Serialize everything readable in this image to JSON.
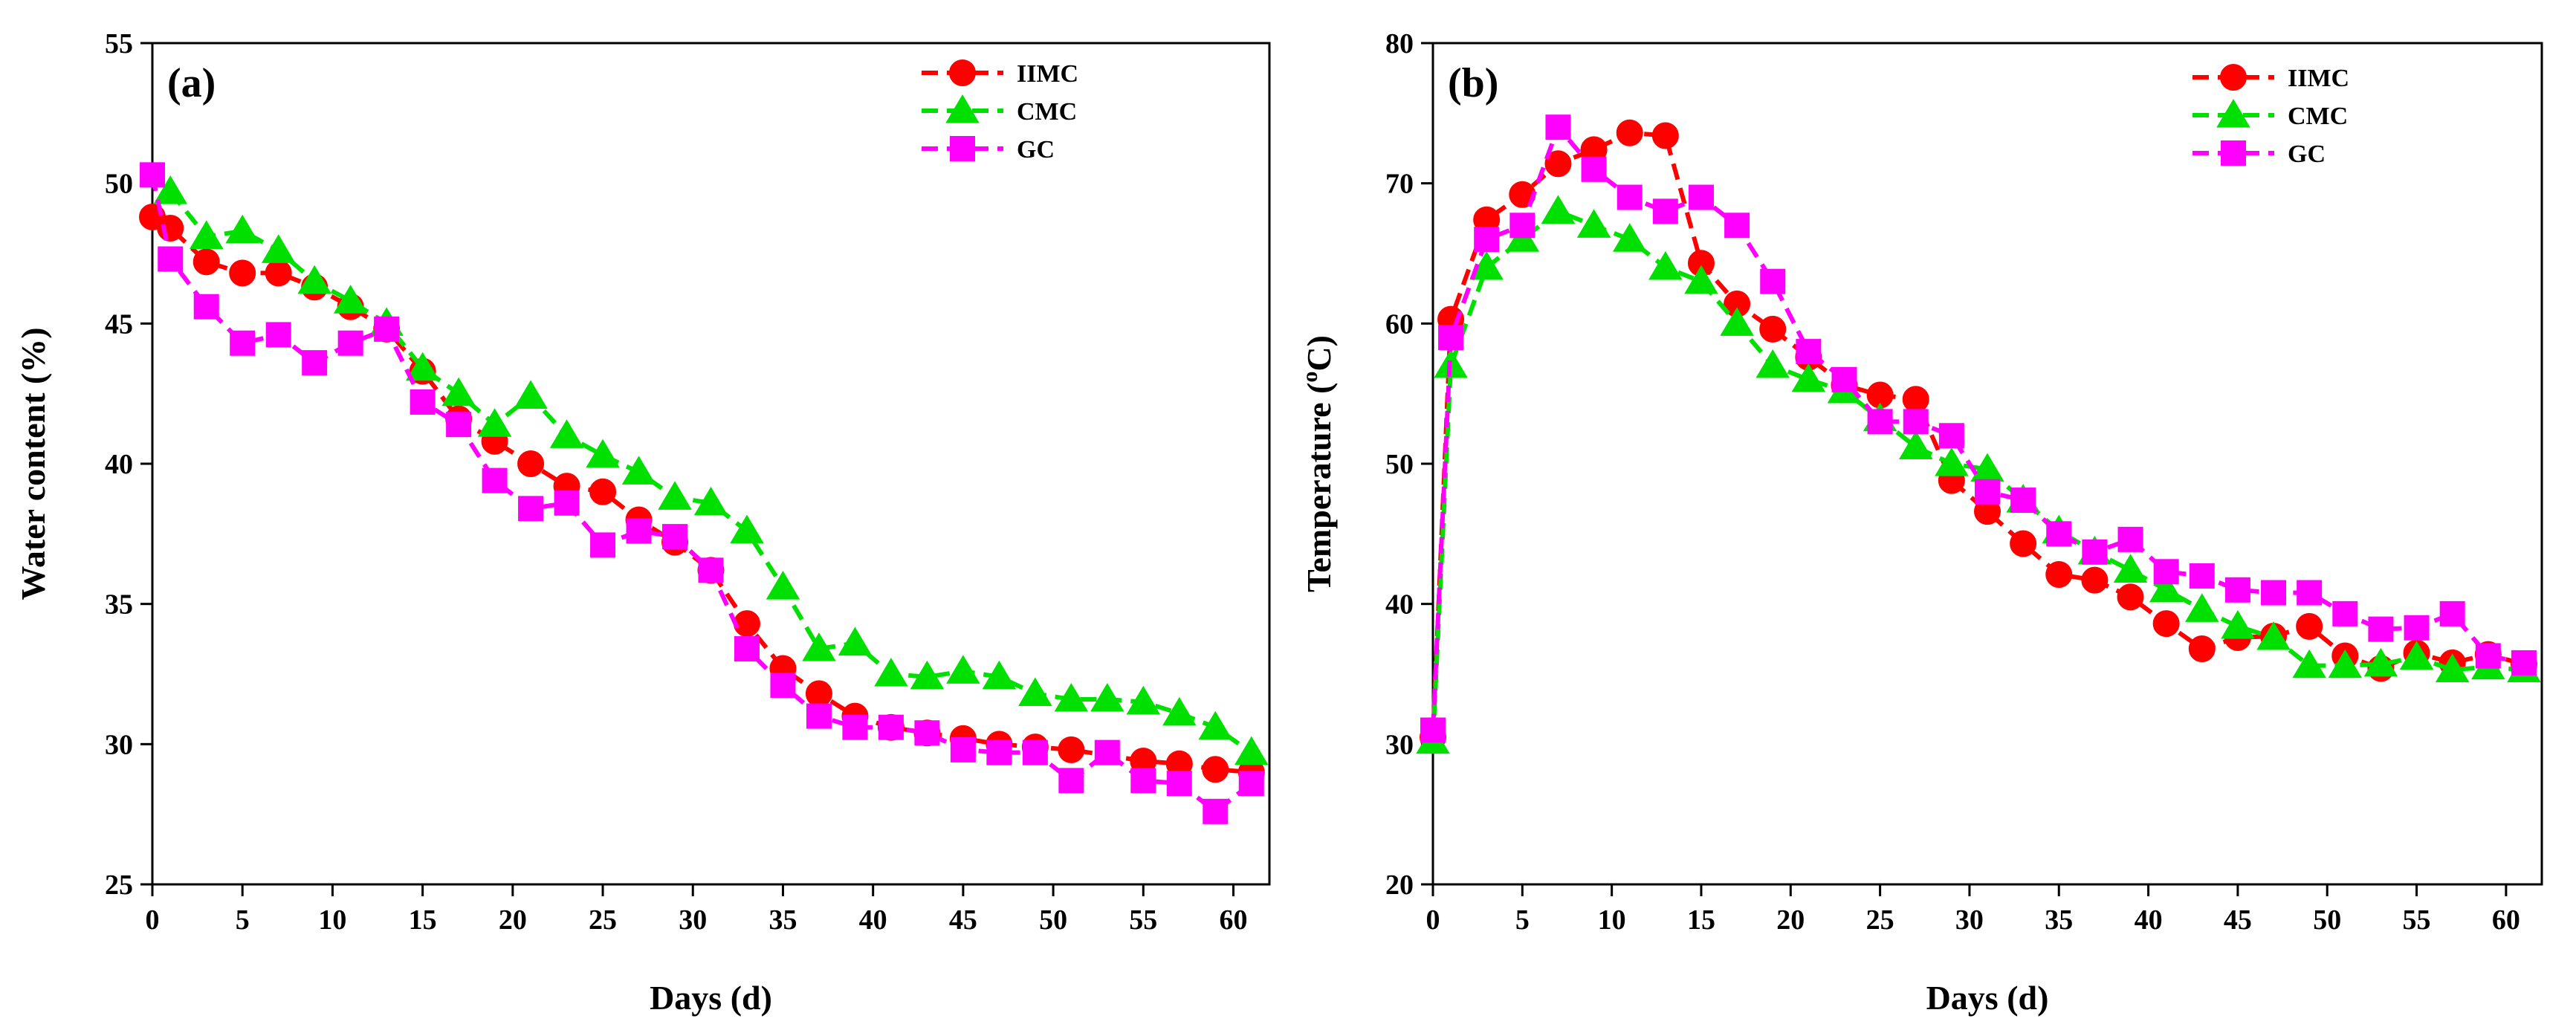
{
  "chart_data": [
    {
      "type": "line",
      "panel_label": "(a)",
      "title": "",
      "xlabel": "Days (d)",
      "ylabel": "Water content (%)",
      "xlim": [
        0,
        62
      ],
      "ylim": [
        25,
        55
      ],
      "xticks": [
        0,
        5,
        10,
        15,
        20,
        25,
        30,
        35,
        40,
        45,
        50,
        55,
        60
      ],
      "yticks": [
        25,
        30,
        35,
        40,
        45,
        50,
        55
      ],
      "grid": false,
      "legend_position": "top-right",
      "series": [
        {
          "name": "IIMC",
          "color": "#ff0000",
          "marker": "circle",
          "x": [
            0,
            1,
            3,
            5,
            7,
            9,
            11,
            13,
            15,
            17,
            19,
            21,
            23,
            25,
            27,
            29,
            31,
            33,
            35,
            37,
            39,
            41,
            43,
            45,
            47,
            49,
            51,
            55,
            57,
            59,
            61
          ],
          "y": [
            48.8,
            48.4,
            47.2,
            46.8,
            46.8,
            46.3,
            45.6,
            44.8,
            43.3,
            41.6,
            40.8,
            40.0,
            39.2,
            39.0,
            38.0,
            37.2,
            36.2,
            34.3,
            32.7,
            31.8,
            31.0,
            30.6,
            30.4,
            30.2,
            30.0,
            29.9,
            29.8,
            29.4,
            29.3,
            29.1,
            29.0
          ]
        },
        {
          "name": "CMC",
          "color": "#00e000",
          "marker": "triangle",
          "x": [
            1,
            3,
            5,
            7,
            9,
            11,
            13,
            15,
            17,
            19,
            21,
            23,
            25,
            27,
            29,
            31,
            33,
            35,
            37,
            39,
            41,
            43,
            45,
            47,
            49,
            51,
            53,
            55,
            57,
            59,
            61
          ],
          "y": [
            49.7,
            48.1,
            48.3,
            47.6,
            46.5,
            45.8,
            45.0,
            43.4,
            42.5,
            41.4,
            42.4,
            41.0,
            40.3,
            39.7,
            38.8,
            38.6,
            37.6,
            35.6,
            33.4,
            33.6,
            32.5,
            32.4,
            32.6,
            32.4,
            31.8,
            31.6,
            31.6,
            31.5,
            31.1,
            30.6,
            29.7
          ]
        },
        {
          "name": "GC",
          "color": "#ff00ff",
          "marker": "square",
          "x": [
            0,
            1,
            3,
            5,
            7,
            9,
            11,
            13,
            15,
            17,
            19,
            21,
            23,
            25,
            27,
            29,
            31,
            33,
            35,
            37,
            39,
            41,
            43,
            45,
            47,
            49,
            51,
            53,
            55,
            57,
            59,
            61
          ],
          "y": [
            50.3,
            47.3,
            45.6,
            44.3,
            44.6,
            43.6,
            44.3,
            44.8,
            42.2,
            41.4,
            39.4,
            38.4,
            38.6,
            37.1,
            37.6,
            37.4,
            36.2,
            33.4,
            32.1,
            31.0,
            30.6,
            30.6,
            30.4,
            29.8,
            29.7,
            29.7,
            28.7,
            29.7,
            28.7,
            28.6,
            27.6,
            28.6
          ]
        }
      ]
    },
    {
      "type": "line",
      "panel_label": "(b)",
      "title": "",
      "xlabel": "Days (d)",
      "ylabel": "Temperature (°C)",
      "ylabel_parts": [
        "Temperature (",
        "o",
        "C)"
      ],
      "xlim": [
        0,
        62
      ],
      "ylim": [
        20,
        80
      ],
      "xticks": [
        0,
        5,
        10,
        15,
        20,
        25,
        30,
        35,
        40,
        45,
        50,
        55,
        60
      ],
      "yticks": [
        20,
        30,
        40,
        50,
        60,
        70,
        80
      ],
      "grid": false,
      "legend_position": "top-right",
      "series": [
        {
          "name": "IIMC",
          "color": "#ff0000",
          "marker": "circle",
          "x": [
            0,
            1,
            3,
            5,
            7,
            9,
            11,
            13,
            15,
            17,
            19,
            21,
            23,
            25,
            27,
            29,
            31,
            33,
            35,
            37,
            39,
            41,
            43,
            45,
            47,
            49,
            51,
            53,
            55,
            57,
            59,
            61
          ],
          "y": [
            30.5,
            60.3,
            67.4,
            69.2,
            71.4,
            72.4,
            73.6,
            73.4,
            64.3,
            61.4,
            59.6,
            57.6,
            55.6,
            54.9,
            54.6,
            48.8,
            46.6,
            44.3,
            42.1,
            41.7,
            40.5,
            38.6,
            36.8,
            37.6,
            37.7,
            38.4,
            36.3,
            35.4,
            36.5,
            35.8,
            36.4,
            35.7
          ]
        },
        {
          "name": "CMC",
          "color": "#00e000",
          "marker": "triangle",
          "x": [
            0,
            1,
            3,
            5,
            7,
            9,
            11,
            13,
            15,
            17,
            19,
            21,
            23,
            25,
            27,
            29,
            31,
            33,
            35,
            37,
            39,
            41,
            43,
            45,
            47,
            49,
            51,
            53,
            55,
            57,
            59,
            61
          ],
          "y": [
            30.2,
            57.0,
            64.0,
            66.0,
            68.0,
            67.0,
            66.0,
            64.0,
            63.0,
            60.0,
            57.0,
            56.0,
            55.2,
            53.2,
            51.2,
            50.0,
            49.6,
            47.4,
            45.2,
            43.7,
            42.4,
            41.0,
            39.6,
            38.4,
            37.6,
            35.6,
            35.6,
            35.7,
            36.2,
            35.3,
            35.5,
            35.3
          ]
        },
        {
          "name": "GC",
          "color": "#ff00ff",
          "marker": "square",
          "x": [
            0,
            1,
            3,
            5,
            7,
            9,
            11,
            13,
            15,
            17,
            19,
            21,
            23,
            25,
            27,
            29,
            31,
            33,
            35,
            37,
            39,
            41,
            43,
            45,
            47,
            49,
            51,
            53,
            55,
            57,
            59,
            61
          ],
          "y": [
            31.0,
            59.0,
            66.0,
            67.0,
            74.0,
            71.0,
            69.0,
            68.0,
            69.0,
            67.0,
            63.0,
            58.0,
            56.0,
            53.0,
            53.0,
            52.0,
            48.0,
            47.4,
            45.0,
            43.7,
            44.6,
            42.3,
            42.0,
            41.0,
            40.8,
            40.8,
            39.3,
            38.2,
            38.3,
            39.3,
            36.3,
            35.8
          ]
        }
      ]
    }
  ]
}
